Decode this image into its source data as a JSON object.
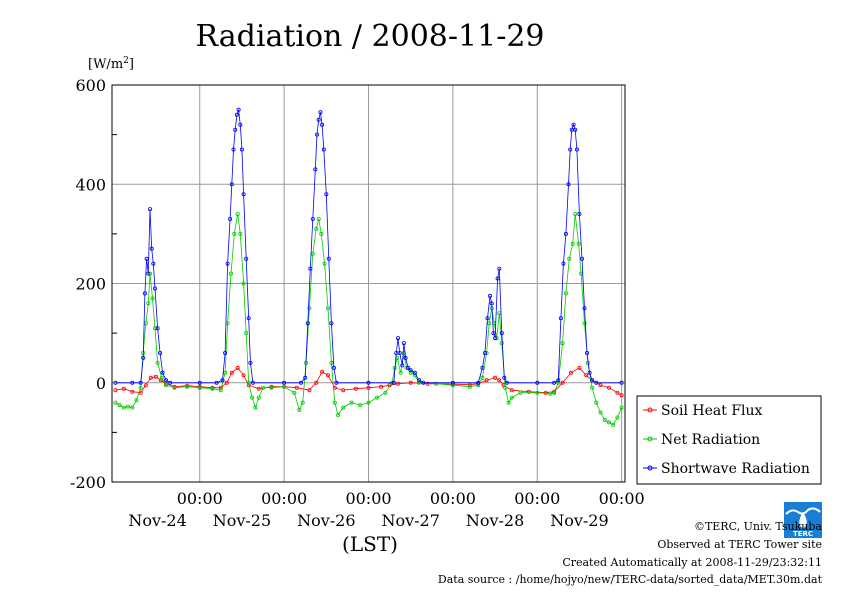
{
  "chart_data": {
    "type": "line",
    "title": "Radiation / 2008-11-29",
    "ylabel": "[W/m2]",
    "xlabel": "(LST)",
    "ylim": [
      -200,
      600
    ],
    "y_ticks": [
      -200,
      0,
      200,
      400,
      600
    ],
    "x_unit": "day",
    "xlim": [
      -0.04,
      6.04
    ],
    "x_ticks": [
      {
        "pos": 1,
        "time": "00:00",
        "date": "Nov-24"
      },
      {
        "pos": 2,
        "time": "00:00",
        "date": "Nov-25"
      },
      {
        "pos": 3,
        "time": "00:00",
        "date": "Nov-26"
      },
      {
        "pos": 4,
        "time": "00:00",
        "date": "Nov-27"
      },
      {
        "pos": 5,
        "time": "00:00",
        "date": "Nov-28"
      },
      {
        "pos": 6,
        "time": "00:00",
        "date": "Nov-29"
      }
    ],
    "grid": true,
    "legend_position": "right",
    "series": [
      {
        "name": "Soil Heat Flux",
        "color": "#ff0000",
        "points": [
          [
            0.0,
            -15
          ],
          [
            0.1,
            -12
          ],
          [
            0.2,
            -18
          ],
          [
            0.3,
            -20
          ],
          [
            0.36,
            -5
          ],
          [
            0.42,
            10
          ],
          [
            0.48,
            12
          ],
          [
            0.54,
            5
          ],
          [
            0.6,
            -2
          ],
          [
            0.7,
            -8
          ],
          [
            0.85,
            -6
          ],
          [
            1.0,
            -8
          ],
          [
            1.15,
            -10
          ],
          [
            1.25,
            -10
          ],
          [
            1.32,
            0
          ],
          [
            1.38,
            20
          ],
          [
            1.45,
            30
          ],
          [
            1.52,
            15
          ],
          [
            1.58,
            -5
          ],
          [
            1.7,
            -12
          ],
          [
            1.85,
            -8
          ],
          [
            2.0,
            -8
          ],
          [
            2.15,
            -10
          ],
          [
            2.3,
            -15
          ],
          [
            2.38,
            0
          ],
          [
            2.45,
            22
          ],
          [
            2.52,
            15
          ],
          [
            2.6,
            -10
          ],
          [
            2.7,
            -15
          ],
          [
            2.85,
            -12
          ],
          [
            3.0,
            -10
          ],
          [
            3.15,
            -8
          ],
          [
            3.25,
            -5
          ],
          [
            3.35,
            -2
          ],
          [
            3.5,
            0
          ],
          [
            3.7,
            -2
          ],
          [
            4.0,
            -3
          ],
          [
            4.2,
            -4
          ],
          [
            4.3,
            -2
          ],
          [
            4.4,
            5
          ],
          [
            4.5,
            10
          ],
          [
            4.55,
            5
          ],
          [
            4.6,
            -5
          ],
          [
            4.7,
            -15
          ],
          [
            4.9,
            -18
          ],
          [
            5.1,
            -20
          ],
          [
            5.2,
            -18
          ],
          [
            5.3,
            0
          ],
          [
            5.4,
            20
          ],
          [
            5.5,
            30
          ],
          [
            5.58,
            15
          ],
          [
            5.65,
            5
          ],
          [
            5.75,
            -5
          ],
          [
            5.85,
            -10
          ],
          [
            5.95,
            -20
          ],
          [
            6.0,
            -25
          ]
        ]
      },
      {
        "name": "Net Radiation",
        "color": "#00cc00",
        "points": [
          [
            0.0,
            -40
          ],
          [
            0.05,
            -45
          ],
          [
            0.1,
            -50
          ],
          [
            0.15,
            -48
          ],
          [
            0.2,
            -50
          ],
          [
            0.25,
            -35
          ],
          [
            0.3,
            -10
          ],
          [
            0.33,
            60
          ],
          [
            0.36,
            120
          ],
          [
            0.39,
            160
          ],
          [
            0.41,
            220
          ],
          [
            0.44,
            170
          ],
          [
            0.47,
            110
          ],
          [
            0.5,
            40
          ],
          [
            0.55,
            10
          ],
          [
            0.6,
            -5
          ],
          [
            0.7,
            -10
          ],
          [
            0.85,
            -8
          ],
          [
            1.0,
            -10
          ],
          [
            1.15,
            -12
          ],
          [
            1.25,
            -15
          ],
          [
            1.3,
            20
          ],
          [
            1.33,
            120
          ],
          [
            1.37,
            220
          ],
          [
            1.41,
            300
          ],
          [
            1.45,
            340
          ],
          [
            1.48,
            300
          ],
          [
            1.52,
            200
          ],
          [
            1.55,
            100
          ],
          [
            1.58,
            0
          ],
          [
            1.62,
            -30
          ],
          [
            1.66,
            -50
          ],
          [
            1.7,
            -30
          ],
          [
            1.75,
            -10
          ],
          [
            1.85,
            -10
          ],
          [
            2.0,
            -8
          ],
          [
            2.12,
            -20
          ],
          [
            2.18,
            -55
          ],
          [
            2.22,
            -40
          ],
          [
            2.26,
            40
          ],
          [
            2.3,
            150
          ],
          [
            2.34,
            260
          ],
          [
            2.38,
            310
          ],
          [
            2.41,
            330
          ],
          [
            2.44,
            300
          ],
          [
            2.48,
            240
          ],
          [
            2.52,
            150
          ],
          [
            2.56,
            40
          ],
          [
            2.6,
            -40
          ],
          [
            2.64,
            -65
          ],
          [
            2.7,
            -50
          ],
          [
            2.8,
            -40
          ],
          [
            2.9,
            -45
          ],
          [
            3.0,
            -40
          ],
          [
            3.1,
            -30
          ],
          [
            3.2,
            -20
          ],
          [
            3.28,
            0
          ],
          [
            3.31,
            30
          ],
          [
            3.34,
            50
          ],
          [
            3.38,
            20
          ],
          [
            3.42,
            60
          ],
          [
            3.45,
            30
          ],
          [
            3.5,
            20
          ],
          [
            3.55,
            15
          ],
          [
            3.6,
            0
          ],
          [
            3.8,
            -2
          ],
          [
            4.0,
            -5
          ],
          [
            4.2,
            -8
          ],
          [
            4.3,
            -5
          ],
          [
            4.35,
            10
          ],
          [
            4.4,
            60
          ],
          [
            4.43,
            120
          ],
          [
            4.46,
            150
          ],
          [
            4.49,
            120
          ],
          [
            4.52,
            90
          ],
          [
            4.55,
            140
          ],
          [
            4.58,
            80
          ],
          [
            4.62,
            -10
          ],
          [
            4.66,
            -40
          ],
          [
            4.7,
            -30
          ],
          [
            4.8,
            -20
          ],
          [
            5.0,
            -20
          ],
          [
            5.15,
            -22
          ],
          [
            5.2,
            -20
          ],
          [
            5.25,
            0
          ],
          [
            5.3,
            80
          ],
          [
            5.34,
            180
          ],
          [
            5.38,
            250
          ],
          [
            5.42,
            280
          ],
          [
            5.45,
            340
          ],
          [
            5.49,
            280
          ],
          [
            5.52,
            220
          ],
          [
            5.56,
            120
          ],
          [
            5.6,
            40
          ],
          [
            5.65,
            -10
          ],
          [
            5.7,
            -40
          ],
          [
            5.75,
            -60
          ],
          [
            5.8,
            -75
          ],
          [
            5.85,
            -80
          ],
          [
            5.9,
            -85
          ],
          [
            5.95,
            -70
          ],
          [
            6.0,
            -50
          ]
        ]
      },
      {
        "name": "Shortwave Radiation",
        "color": "#0000ff",
        "points": [
          [
            0.0,
            0
          ],
          [
            0.2,
            0
          ],
          [
            0.3,
            0
          ],
          [
            0.33,
            50
          ],
          [
            0.35,
            180
          ],
          [
            0.37,
            250
          ],
          [
            0.39,
            220
          ],
          [
            0.41,
            350
          ],
          [
            0.43,
            270
          ],
          [
            0.45,
            240
          ],
          [
            0.47,
            190
          ],
          [
            0.5,
            110
          ],
          [
            0.53,
            60
          ],
          [
            0.56,
            20
          ],
          [
            0.6,
            5
          ],
          [
            0.65,
            0
          ],
          [
            1.0,
            0
          ],
          [
            1.2,
            0
          ],
          [
            1.27,
            5
          ],
          [
            1.3,
            60
          ],
          [
            1.33,
            240
          ],
          [
            1.36,
            330
          ],
          [
            1.38,
            400
          ],
          [
            1.4,
            470
          ],
          [
            1.42,
            510
          ],
          [
            1.44,
            540
          ],
          [
            1.46,
            550
          ],
          [
            1.48,
            520
          ],
          [
            1.5,
            470
          ],
          [
            1.52,
            380
          ],
          [
            1.55,
            250
          ],
          [
            1.58,
            130
          ],
          [
            1.6,
            40
          ],
          [
            1.63,
            0
          ],
          [
            2.0,
            0
          ],
          [
            2.2,
            0
          ],
          [
            2.25,
            10
          ],
          [
            2.28,
            120
          ],
          [
            2.31,
            230
          ],
          [
            2.34,
            330
          ],
          [
            2.37,
            430
          ],
          [
            2.39,
            500
          ],
          [
            2.41,
            530
          ],
          [
            2.43,
            545
          ],
          [
            2.45,
            520
          ],
          [
            2.47,
            470
          ],
          [
            2.5,
            380
          ],
          [
            2.53,
            250
          ],
          [
            2.56,
            120
          ],
          [
            2.59,
            30
          ],
          [
            2.62,
            0
          ],
          [
            3.0,
            0
          ],
          [
            3.3,
            0
          ],
          [
            3.33,
            60
          ],
          [
            3.35,
            90
          ],
          [
            3.37,
            60
          ],
          [
            3.4,
            35
          ],
          [
            3.42,
            80
          ],
          [
            3.44,
            50
          ],
          [
            3.47,
            30
          ],
          [
            3.5,
            25
          ],
          [
            3.55,
            20
          ],
          [
            3.6,
            5
          ],
          [
            3.65,
            0
          ],
          [
            4.0,
            0
          ],
          [
            4.3,
            0
          ],
          [
            4.35,
            30
          ],
          [
            4.38,
            60
          ],
          [
            4.41,
            130
          ],
          [
            4.44,
            175
          ],
          [
            4.46,
            160
          ],
          [
            4.48,
            100
          ],
          [
            4.5,
            90
          ],
          [
            4.53,
            210
          ],
          [
            4.55,
            230
          ],
          [
            4.58,
            100
          ],
          [
            4.61,
            10
          ],
          [
            4.64,
            0
          ],
          [
            5.0,
            0
          ],
          [
            5.2,
            0
          ],
          [
            5.25,
            5
          ],
          [
            5.28,
            130
          ],
          [
            5.31,
            240
          ],
          [
            5.34,
            300
          ],
          [
            5.37,
            400
          ],
          [
            5.39,
            470
          ],
          [
            5.41,
            510
          ],
          [
            5.43,
            520
          ],
          [
            5.45,
            510
          ],
          [
            5.47,
            470
          ],
          [
            5.5,
            340
          ],
          [
            5.53,
            250
          ],
          [
            5.56,
            150
          ],
          [
            5.59,
            60
          ],
          [
            5.62,
            20
          ],
          [
            5.65,
            5
          ],
          [
            5.7,
            0
          ],
          [
            6.0,
            0
          ]
        ]
      }
    ]
  },
  "branding": {
    "logo_text": "TERC"
  },
  "footer": {
    "copyright": "©TERC, Univ. Tsukuba",
    "observed": "Observed at TERC Tower site",
    "created": "Created Automatically at 2008-11-29/23:32:11",
    "source": "Data source : /home/hojyo/new/TERC-data/sorted_data/MET.30m.dat"
  }
}
